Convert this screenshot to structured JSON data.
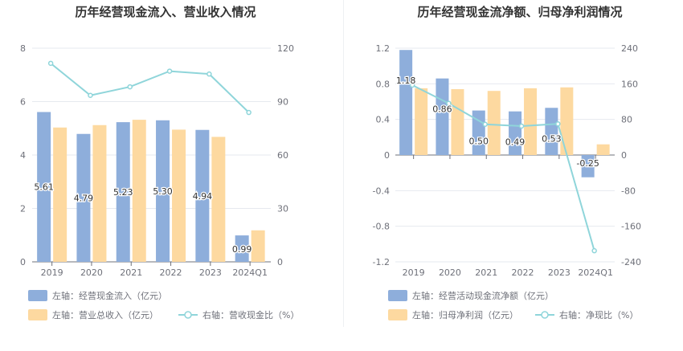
{
  "chart_data": [
    {
      "type": "bar",
      "title": "历年经营现金流入、营业收入情况",
      "categories": [
        "2019",
        "2020",
        "2021",
        "2022",
        "2023",
        "2024Q1"
      ],
      "left_axis": {
        "range": [
          0,
          8
        ],
        "ticks": [
          "0",
          "2",
          "4",
          "6",
          "8"
        ],
        "tick_values": [
          0,
          2,
          4,
          6,
          8
        ]
      },
      "right_axis": {
        "range": [
          0,
          120
        ],
        "ticks": [
          "0",
          "30",
          "60",
          "90",
          "120"
        ],
        "tick_values": [
          0,
          30,
          60,
          90,
          120
        ]
      },
      "series": [
        {
          "name": "左轴：经营现金流入（亿元）",
          "kind": "bar",
          "axis": "left",
          "color": "#8eaedb",
          "values": [
            5.61,
            4.79,
            5.23,
            5.3,
            4.94,
            0.99
          ],
          "labels": [
            "5.61",
            "4.79",
            "5.23",
            "5.30",
            "4.94",
            "0.99"
          ]
        },
        {
          "name": "左轴：营业总收入（亿元）",
          "kind": "bar",
          "axis": "left",
          "color": "#fdd9a0",
          "values": [
            5.03,
            5.12,
            5.32,
            4.95,
            4.68,
            1.18
          ]
        },
        {
          "name": "右轴：营收现金比（%）",
          "kind": "line",
          "axis": "right",
          "color": "#8fd5da",
          "values": [
            111.5,
            93.5,
            98.3,
            107.1,
            105.5,
            83.9
          ]
        }
      ]
    },
    {
      "type": "bar",
      "title": "历年经营现金流净额、归母净利润情况",
      "categories": [
        "2019",
        "2020",
        "2021",
        "2022",
        "2023",
        "2024Q1"
      ],
      "left_axis": {
        "range": [
          -1.2,
          1.2
        ],
        "ticks": [
          "-1.2",
          "-0.8",
          "-0.4",
          "0",
          "0.4",
          "0.8",
          "1.2"
        ],
        "tick_values": [
          -1.2,
          -0.8,
          -0.4,
          0,
          0.4,
          0.8,
          1.2
        ]
      },
      "right_axis": {
        "range": [
          -240,
          240
        ],
        "ticks": [
          "-240",
          "-160",
          "-80",
          "0",
          "80",
          "160",
          "240"
        ],
        "tick_values": [
          -240,
          -160,
          -80,
          0,
          80,
          160,
          240
        ]
      },
      "series": [
        {
          "name": "左轴：经营活动现金流净额（亿元）",
          "kind": "bar",
          "axis": "left",
          "color": "#8eaedb",
          "values": [
            1.18,
            0.86,
            0.5,
            0.49,
            0.53,
            -0.25
          ],
          "labels": [
            "1.18",
            "0.86",
            "0.50",
            "0.49",
            "0.53",
            "-0.25"
          ]
        },
        {
          "name": "左轴：归母净利润（亿元）",
          "kind": "bar",
          "axis": "left",
          "color": "#fdd9a0",
          "values": [
            0.75,
            0.74,
            0.72,
            0.75,
            0.76,
            0.12
          ]
        },
        {
          "name": "右轴：净现比（%）",
          "kind": "line",
          "axis": "right",
          "color": "#8fd5da",
          "values": [
            157,
            116,
            69,
            65,
            70,
            -215
          ]
        }
      ]
    }
  ]
}
